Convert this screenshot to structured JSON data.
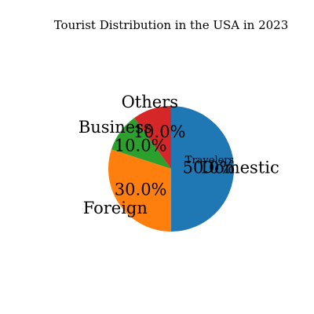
{
  "chart_data": {
    "type": "pie",
    "title": "Tourist Distribution in the USA in 2023",
    "start_angle": "top, clockwise",
    "slices": [
      {
        "label": "Domestic",
        "value": 50.0,
        "pct_label": "50.0%",
        "color": "#1f77b4"
      },
      {
        "label": "Foreign",
        "value": 30.0,
        "pct_label": "30.0%",
        "color": "#ff7f0e"
      },
      {
        "label": "Business",
        "value": 10.0,
        "pct_label": "10.0%",
        "color": "#2ca02c"
      },
      {
        "label": "Others",
        "value": 10.0,
        "pct_label": "10.0%",
        "color": "#d62728"
      }
    ],
    "annotations": [
      {
        "text": "Travelers"
      }
    ]
  }
}
